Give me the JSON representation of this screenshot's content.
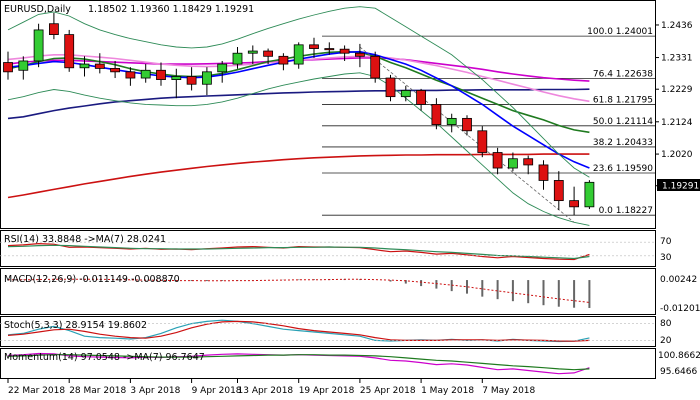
{
  "chart_data": [
    {
      "type": "candlestick",
      "title": "EURUSD,Daily",
      "ohlc_header": "1.18502 1.19360 1.18429 1.19291",
      "last_price": "1.19291",
      "x_labels": [
        "22 Mar 2018",
        "28 Mar 2018",
        "3 Apr 2018",
        "9 Apr 2018",
        "13 Apr 2018",
        "19 Apr 2018",
        "25 Apr 2018",
        "1 May 2018",
        "7 May 2018"
      ],
      "y_ticks": [
        1.2436,
        1.2331,
        1.2229,
        1.2124,
        1.202,
        1.1918
      ],
      "y_tick_labels": [
        "1.2436",
        "1.2331",
        "1.2229",
        "1.2124",
        "1.2020",
        "1.1918"
      ],
      "ylim": [
        1.1785,
        1.251
      ],
      "candles": [
        {
          "o": 1.2315,
          "h": 1.235,
          "l": 1.226,
          "c": 1.2285
        },
        {
          "o": 1.229,
          "h": 1.2335,
          "l": 1.226,
          "c": 1.232
        },
        {
          "o": 1.232,
          "h": 1.244,
          "l": 1.23,
          "c": 1.242
        },
        {
          "o": 1.244,
          "h": 1.2475,
          "l": 1.239,
          "c": 1.2405
        },
        {
          "o": 1.2405,
          "h": 1.242,
          "l": 1.2285,
          "c": 1.2298
        },
        {
          "o": 1.2298,
          "h": 1.2335,
          "l": 1.227,
          "c": 1.231
        },
        {
          "o": 1.231,
          "h": 1.2345,
          "l": 1.228,
          "c": 1.2296
        },
        {
          "o": 1.2296,
          "h": 1.232,
          "l": 1.2265,
          "c": 1.2285
        },
        {
          "o": 1.2285,
          "h": 1.23,
          "l": 1.224,
          "c": 1.2265
        },
        {
          "o": 1.2265,
          "h": 1.231,
          "l": 1.225,
          "c": 1.229
        },
        {
          "o": 1.229,
          "h": 1.2315,
          "l": 1.224,
          "c": 1.226
        },
        {
          "o": 1.226,
          "h": 1.2295,
          "l": 1.22,
          "c": 1.227
        },
        {
          "o": 1.227,
          "h": 1.23,
          "l": 1.2225,
          "c": 1.2245
        },
        {
          "o": 1.2245,
          "h": 1.23,
          "l": 1.221,
          "c": 1.2285
        },
        {
          "o": 1.2285,
          "h": 1.232,
          "l": 1.225,
          "c": 1.231
        },
        {
          "o": 1.231,
          "h": 1.2365,
          "l": 1.2295,
          "c": 1.2345
        },
        {
          "o": 1.2345,
          "h": 1.237,
          "l": 1.231,
          "c": 1.2352
        },
        {
          "o": 1.2352,
          "h": 1.236,
          "l": 1.231,
          "c": 1.2335
        },
        {
          "o": 1.2335,
          "h": 1.2345,
          "l": 1.229,
          "c": 1.231
        },
        {
          "o": 1.231,
          "h": 1.238,
          "l": 1.2295,
          "c": 1.2372
        },
        {
          "o": 1.2372,
          "h": 1.2395,
          "l": 1.233,
          "c": 1.236
        },
        {
          "o": 1.236,
          "h": 1.238,
          "l": 1.234,
          "c": 1.2358
        },
        {
          "o": 1.2358,
          "h": 1.237,
          "l": 1.232,
          "c": 1.2345
        },
        {
          "o": 1.2345,
          "h": 1.2375,
          "l": 1.23,
          "c": 1.2335
        },
        {
          "o": 1.2335,
          "h": 1.235,
          "l": 1.225,
          "c": 1.2265
        },
        {
          "o": 1.2265,
          "h": 1.2275,
          "l": 1.219,
          "c": 1.2205
        },
        {
          "o": 1.2205,
          "h": 1.224,
          "l": 1.219,
          "c": 1.2225
        },
        {
          "o": 1.2225,
          "h": 1.223,
          "l": 1.216,
          "c": 1.218
        },
        {
          "o": 1.218,
          "h": 1.22,
          "l": 1.21,
          "c": 1.2115
        },
        {
          "o": 1.2115,
          "h": 1.215,
          "l": 1.209,
          "c": 1.2135
        },
        {
          "o": 1.2135,
          "h": 1.2145,
          "l": 1.208,
          "c": 1.2095
        },
        {
          "o": 1.2095,
          "h": 1.211,
          "l": 1.201,
          "c": 1.2025
        },
        {
          "o": 1.2025,
          "h": 1.204,
          "l": 1.1955,
          "c": 1.1975
        },
        {
          "o": 1.1975,
          "h": 1.2025,
          "l": 1.1965,
          "c": 1.2005
        },
        {
          "o": 1.2005,
          "h": 1.2015,
          "l": 1.1955,
          "c": 1.1985
        },
        {
          "o": 1.1985,
          "h": 1.2,
          "l": 1.1905,
          "c": 1.1935
        },
        {
          "o": 1.1935,
          "h": 1.1965,
          "l": 1.184,
          "c": 1.187
        },
        {
          "o": 1.187,
          "h": 1.1915,
          "l": 1.1823,
          "c": 1.185
        },
        {
          "o": 1.185,
          "h": 1.1936,
          "l": 1.1843,
          "c": 1.1929
        }
      ],
      "fib_levels": [
        {
          "label": "100.0",
          "price_label": "1.24001",
          "price": 1.24
        },
        {
          "label": "76.4",
          "price_label": "1.22638",
          "price": 1.2264
        },
        {
          "label": "61.8",
          "price_label": "1.21795",
          "price": 1.218
        },
        {
          "label": "50.0",
          "price_label": "1.21114",
          "price": 1.2111
        },
        {
          "label": "38.2",
          "price_label": "1.20433",
          "price": 1.2043
        },
        {
          "label": "23.6",
          "price_label": "1.19590",
          "price": 1.1959
        },
        {
          "label": "0.0",
          "price_label": "1.18227",
          "price": 1.1823
        }
      ],
      "overlays": [
        {
          "color": "#1a1a80",
          "values": [
            1.2135,
            1.214,
            1.215,
            1.216,
            1.2168,
            1.2175,
            1.2182,
            1.2188,
            1.2192,
            1.2196,
            1.22,
            1.2203,
            1.2205,
            1.2207,
            1.2209,
            1.2211,
            1.2213,
            1.2215,
            1.2217,
            1.2218,
            1.222,
            1.2221,
            1.2222,
            1.2223,
            1.2224,
            1.2224,
            1.2225,
            1.2225,
            1.2225,
            1.2226,
            1.2226,
            1.2227,
            1.2227,
            1.2227,
            1.2227,
            1.2228,
            1.2228,
            1.2228,
            1.2229
          ]
        },
        {
          "color": "#cc1111",
          "values": [
            1.188,
            1.1888,
            1.1897,
            1.1906,
            1.1915,
            1.1924,
            1.1932,
            1.194,
            1.1948,
            1.1955,
            1.1962,
            1.1968,
            1.1974,
            1.198,
            1.1985,
            1.199,
            1.1994,
            1.1998,
            1.2002,
            1.2005,
            1.2008,
            1.201,
            1.2012,
            1.2014,
            1.2015,
            1.2016,
            1.2017,
            1.2017,
            1.2018,
            1.2018,
            1.2018,
            1.2019,
            1.2019,
            1.2019,
            1.2019,
            1.202,
            1.202,
            1.202,
            1.202
          ]
        },
        {
          "color": "#cc00cc",
          "values": [
            1.231,
            1.2316,
            1.232,
            1.2322,
            1.2322,
            1.232,
            1.2318,
            1.2316,
            1.2314,
            1.2312,
            1.231,
            1.231,
            1.231,
            1.2311,
            1.2312,
            1.2313,
            1.2315,
            1.2318,
            1.232,
            1.2322,
            1.2324,
            1.2326,
            1.2328,
            1.233,
            1.233,
            1.2328,
            1.2324,
            1.2318,
            1.2312,
            1.2306,
            1.23,
            1.2293,
            1.2285,
            1.2278,
            1.2272,
            1.2266,
            1.2262,
            1.2258,
            1.2255
          ]
        },
        {
          "color": "#ee88dd",
          "values": [
            1.2325,
            1.233,
            1.2336,
            1.234,
            1.234,
            1.2336,
            1.2332,
            1.2328,
            1.2322,
            1.2316,
            1.231,
            1.2306,
            1.2303,
            1.2302,
            1.2303,
            1.2306,
            1.231,
            1.2314,
            1.2318,
            1.2322,
            1.2326,
            1.233,
            1.2333,
            1.2335,
            1.2334,
            1.233,
            1.2323,
            1.2314,
            1.2305,
            1.2294,
            1.2283,
            1.227,
            1.2258,
            1.2245,
            1.2233,
            1.222,
            1.2208,
            1.2198,
            1.219
          ]
        },
        {
          "color": "#1f7a1f",
          "values": [
            1.2295,
            1.2305,
            1.2318,
            1.2328,
            1.233,
            1.2326,
            1.2318,
            1.2308,
            1.2295,
            1.2285,
            1.2278,
            1.2272,
            1.227,
            1.2272,
            1.228,
            1.2292,
            1.2305,
            1.2318,
            1.2326,
            1.2335,
            1.2342,
            1.2348,
            1.235,
            1.2348,
            1.2335,
            1.2315,
            1.2298,
            1.2278,
            1.2258,
            1.224,
            1.222,
            1.22,
            1.218,
            1.216,
            1.2145,
            1.213,
            1.2112,
            1.2098,
            1.209
          ]
        },
        {
          "color": "#0000ff",
          "values": [
            1.23,
            1.2305,
            1.2312,
            1.2318,
            1.2315,
            1.2308,
            1.23,
            1.2292,
            1.2284,
            1.2278,
            1.2272,
            1.2268,
            1.2266,
            1.2268,
            1.2275,
            1.2284,
            1.2295,
            1.2306,
            1.2316,
            1.2326,
            1.2334,
            1.2342,
            1.2348,
            1.235,
            1.234,
            1.2325,
            1.231,
            1.229,
            1.2265,
            1.224,
            1.221,
            1.218,
            1.2145,
            1.211,
            1.208,
            1.205,
            1.202,
            1.1995,
            1.1975
          ]
        },
        {
          "color": "#2e8b57",
          "values": [
            1.242,
            1.2445,
            1.247,
            1.2478,
            1.2465,
            1.244,
            1.242,
            1.2405,
            1.2392,
            1.2382,
            1.2372,
            1.2365,
            1.2362,
            1.2365,
            1.2375,
            1.239,
            1.2408,
            1.2425,
            1.244,
            1.2455,
            1.2468,
            1.248,
            1.249,
            1.2495,
            1.249,
            1.246,
            1.243,
            1.24,
            1.237,
            1.234,
            1.23,
            1.226,
            1.2215,
            1.217,
            1.212,
            1.207,
            1.202,
            1.1975,
            1.1945
          ]
        },
        {
          "color": "#2e8b57",
          "values": [
            1.2195,
            1.2205,
            1.2218,
            1.2228,
            1.2222,
            1.221,
            1.22,
            1.2192,
            1.2185,
            1.218,
            1.2178,
            1.2176,
            1.2176,
            1.218,
            1.2188,
            1.22,
            1.2215,
            1.223,
            1.2242,
            1.2252,
            1.2262,
            1.227,
            1.2278,
            1.2282,
            1.227,
            1.224,
            1.22,
            1.216,
            1.212,
            1.2075,
            1.203,
            1.1985,
            1.194,
            1.1895,
            1.186,
            1.1835,
            1.1815,
            1.18,
            1.179
          ]
        }
      ]
    },
    {
      "type": "line",
      "title": "RSI(14) 33.8848 ->MA(7) 28.0241",
      "y_tick_labels": [
        "70",
        "30"
      ],
      "ylim": [
        0,
        100
      ],
      "series": [
        {
          "color": "#cc1111",
          "values": [
            60,
            62,
            66,
            64,
            55,
            56,
            54,
            52,
            50,
            52,
            49,
            50,
            48,
            51,
            53,
            56,
            57,
            55,
            53,
            57,
            56,
            56,
            55,
            54,
            48,
            42,
            44,
            40,
            35,
            37,
            33,
            28,
            24,
            28,
            25,
            22,
            20,
            19,
            34
          ]
        },
        {
          "color": "#2e8b57",
          "values": [
            57,
            58,
            60,
            61,
            60,
            58,
            56,
            54,
            52,
            51,
            51,
            50,
            50,
            50,
            51,
            52,
            53,
            54,
            54,
            55,
            55,
            56,
            55,
            55,
            53,
            50,
            48,
            45,
            42,
            40,
            37,
            34,
            31,
            30,
            28,
            26,
            24,
            22,
            28
          ]
        }
      ]
    },
    {
      "type": "bar",
      "title": "MACD(12,26,9) -0.011149 -0.008870",
      "y_tick_labels": [
        "0.00242",
        "-0.012019"
      ],
      "ylim": [
        -0.0135,
        0.004
      ],
      "values": [
        0.0,
        0.0002,
        0.0004,
        0.0005,
        0.0004,
        0.0003,
        0.0002,
        0.0001,
        -0.0001,
        -0.0002,
        -0.0003,
        -0.0004,
        -0.0004,
        -0.0004,
        -0.0003,
        -0.0002,
        -0.0001,
        0.0,
        0.0001,
        0.0002,
        0.0003,
        0.0004,
        0.0004,
        0.0003,
        0.0,
        -0.0006,
        -0.0014,
        -0.0024,
        -0.0034,
        -0.0044,
        -0.0054,
        -0.0066,
        -0.0076,
        -0.0084,
        -0.0092,
        -0.01,
        -0.0106,
        -0.011,
        -0.0111
      ],
      "signal": [
        0.0001,
        0.0001,
        0.0002,
        0.0003,
        0.0003,
        0.0003,
        0.0003,
        0.0002,
        0.0001,
        0.0,
        -0.0001,
        -0.0002,
        -0.0002,
        -0.0003,
        -0.0003,
        -0.0002,
        -0.0002,
        -0.0001,
        0.0,
        0.0001,
        0.0001,
        0.0002,
        0.0003,
        0.0003,
        0.0002,
        0.0,
        -0.0003,
        -0.0008,
        -0.0014,
        -0.002,
        -0.0027,
        -0.0035,
        -0.0043,
        -0.0051,
        -0.0059,
        -0.0067,
        -0.0075,
        -0.0082,
        -0.0089
      ]
    },
    {
      "type": "line",
      "title": "Stoch(5,3,3) 28.9154 19.8602",
      "y_tick_labels": [
        "80",
        "20"
      ],
      "ylim": [
        0,
        100
      ],
      "series": [
        {
          "color": "#2aa1b5",
          "values": [
            40,
            45,
            60,
            70,
            55,
            35,
            30,
            28,
            25,
            30,
            45,
            65,
            80,
            88,
            92,
            88,
            80,
            70,
            60,
            55,
            50,
            45,
            40,
            35,
            20,
            18,
            20,
            22,
            20,
            24,
            20,
            22,
            18,
            24,
            20,
            18,
            16,
            17,
            29
          ]
        },
        {
          "color": "#cc1111",
          "values": [
            38,
            42,
            50,
            58,
            60,
            52,
            42,
            35,
            30,
            28,
            35,
            48,
            65,
            78,
            86,
            88,
            86,
            80,
            72,
            62,
            55,
            50,
            45,
            40,
            30,
            22,
            20,
            20,
            20,
            22,
            22,
            22,
            20,
            22,
            21,
            20,
            18,
            17,
            20
          ]
        }
      ]
    },
    {
      "type": "line",
      "title": "Momentum(14) 97.0548 ->MA(7) 96.7647",
      "y_tick_labels": [
        "100.8662",
        "95.6466"
      ],
      "ylim": [
        94.5,
        101.6
      ],
      "series": [
        {
          "color": "#cc00cc",
          "values": [
            100.2,
            100.4,
            100.7,
            100.6,
            100.1,
            99.9,
            99.8,
            99.7,
            99.6,
            99.8,
            99.7,
            99.9,
            100.0,
            100.3,
            100.5,
            100.6,
            100.5,
            100.4,
            100.3,
            100.4,
            100.3,
            100.2,
            100.1,
            100.0,
            99.6,
            99.0,
            98.8,
            98.4,
            97.9,
            98.1,
            97.8,
            97.2,
            96.6,
            96.8,
            96.4,
            96.0,
            95.6,
            95.8,
            97.1
          ]
        },
        {
          "color": "#1f7a1f",
          "values": [
            100.0,
            100.1,
            100.3,
            100.4,
            100.4,
            100.3,
            100.2,
            100.1,
            100.0,
            99.9,
            99.8,
            99.8,
            99.8,
            99.9,
            100.0,
            100.1,
            100.2,
            100.3,
            100.3,
            100.4,
            100.4,
            100.3,
            100.3,
            100.2,
            100.1,
            99.9,
            99.6,
            99.3,
            99.0,
            98.8,
            98.5,
            98.2,
            97.9,
            97.6,
            97.4,
            97.1,
            96.8,
            96.6,
            96.8
          ]
        }
      ]
    }
  ]
}
